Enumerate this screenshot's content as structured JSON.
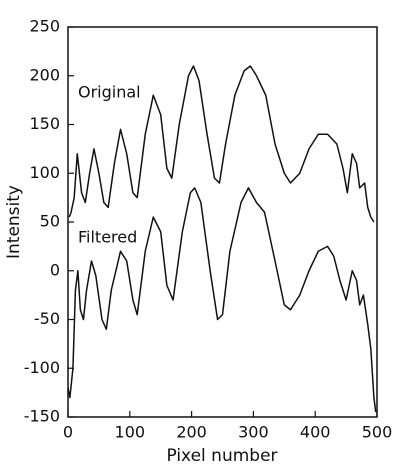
{
  "chart_data": {
    "type": "line",
    "x_label": "Pixel number",
    "y_label": "Intensity",
    "xlim": [
      0,
      500
    ],
    "ylim": [
      -150,
      250
    ],
    "xticks": [
      0,
      100,
      200,
      300,
      400,
      500
    ],
    "yticks": [
      -150,
      -100,
      -50,
      0,
      50,
      100,
      150,
      200,
      250
    ],
    "grid": false,
    "series": [
      {
        "name": "Original",
        "color": "#111111",
        "x": [
          2,
          5,
          10,
          15,
          22,
          28,
          35,
          42,
          50,
          58,
          65,
          75,
          85,
          95,
          105,
          112,
          125,
          138,
          150,
          160,
          168,
          180,
          195,
          203,
          212,
          225,
          237,
          245,
          255,
          270,
          285,
          295,
          305,
          320,
          335,
          350,
          360,
          375,
          390,
          405,
          420,
          435,
          445,
          452,
          460,
          467,
          472,
          480,
          485,
          490,
          495
        ],
        "values": [
          55,
          60,
          75,
          120,
          80,
          70,
          100,
          125,
          100,
          70,
          65,
          110,
          145,
          120,
          80,
          75,
          140,
          180,
          160,
          105,
          95,
          150,
          200,
          210,
          195,
          140,
          95,
          90,
          130,
          180,
          205,
          210,
          200,
          180,
          130,
          100,
          90,
          100,
          125,
          140,
          140,
          130,
          105,
          80,
          120,
          110,
          85,
          90,
          65,
          55,
          50
        ]
      },
      {
        "name": "Filtered",
        "color": "#111111",
        "x": [
          0,
          3,
          8,
          12,
          16,
          20,
          25,
          30,
          38,
          45,
          55,
          62,
          70,
          85,
          95,
          105,
          112,
          125,
          138,
          150,
          160,
          170,
          185,
          198,
          205,
          215,
          230,
          242,
          250,
          262,
          280,
          292,
          305,
          318,
          335,
          350,
          360,
          375,
          390,
          405,
          420,
          430,
          440,
          450,
          460,
          467,
          472,
          478,
          485,
          490,
          495,
          498
        ],
        "values": [
          -120,
          -130,
          -100,
          -20,
          0,
          -40,
          -50,
          -20,
          10,
          -5,
          -50,
          -60,
          -20,
          20,
          10,
          -30,
          -45,
          20,
          55,
          40,
          -15,
          -30,
          40,
          80,
          85,
          70,
          0,
          -50,
          -45,
          20,
          70,
          85,
          70,
          60,
          10,
          -35,
          -40,
          -25,
          0,
          20,
          25,
          15,
          -10,
          -30,
          0,
          -10,
          -35,
          -25,
          -55,
          -80,
          -130,
          -145
        ]
      }
    ]
  }
}
